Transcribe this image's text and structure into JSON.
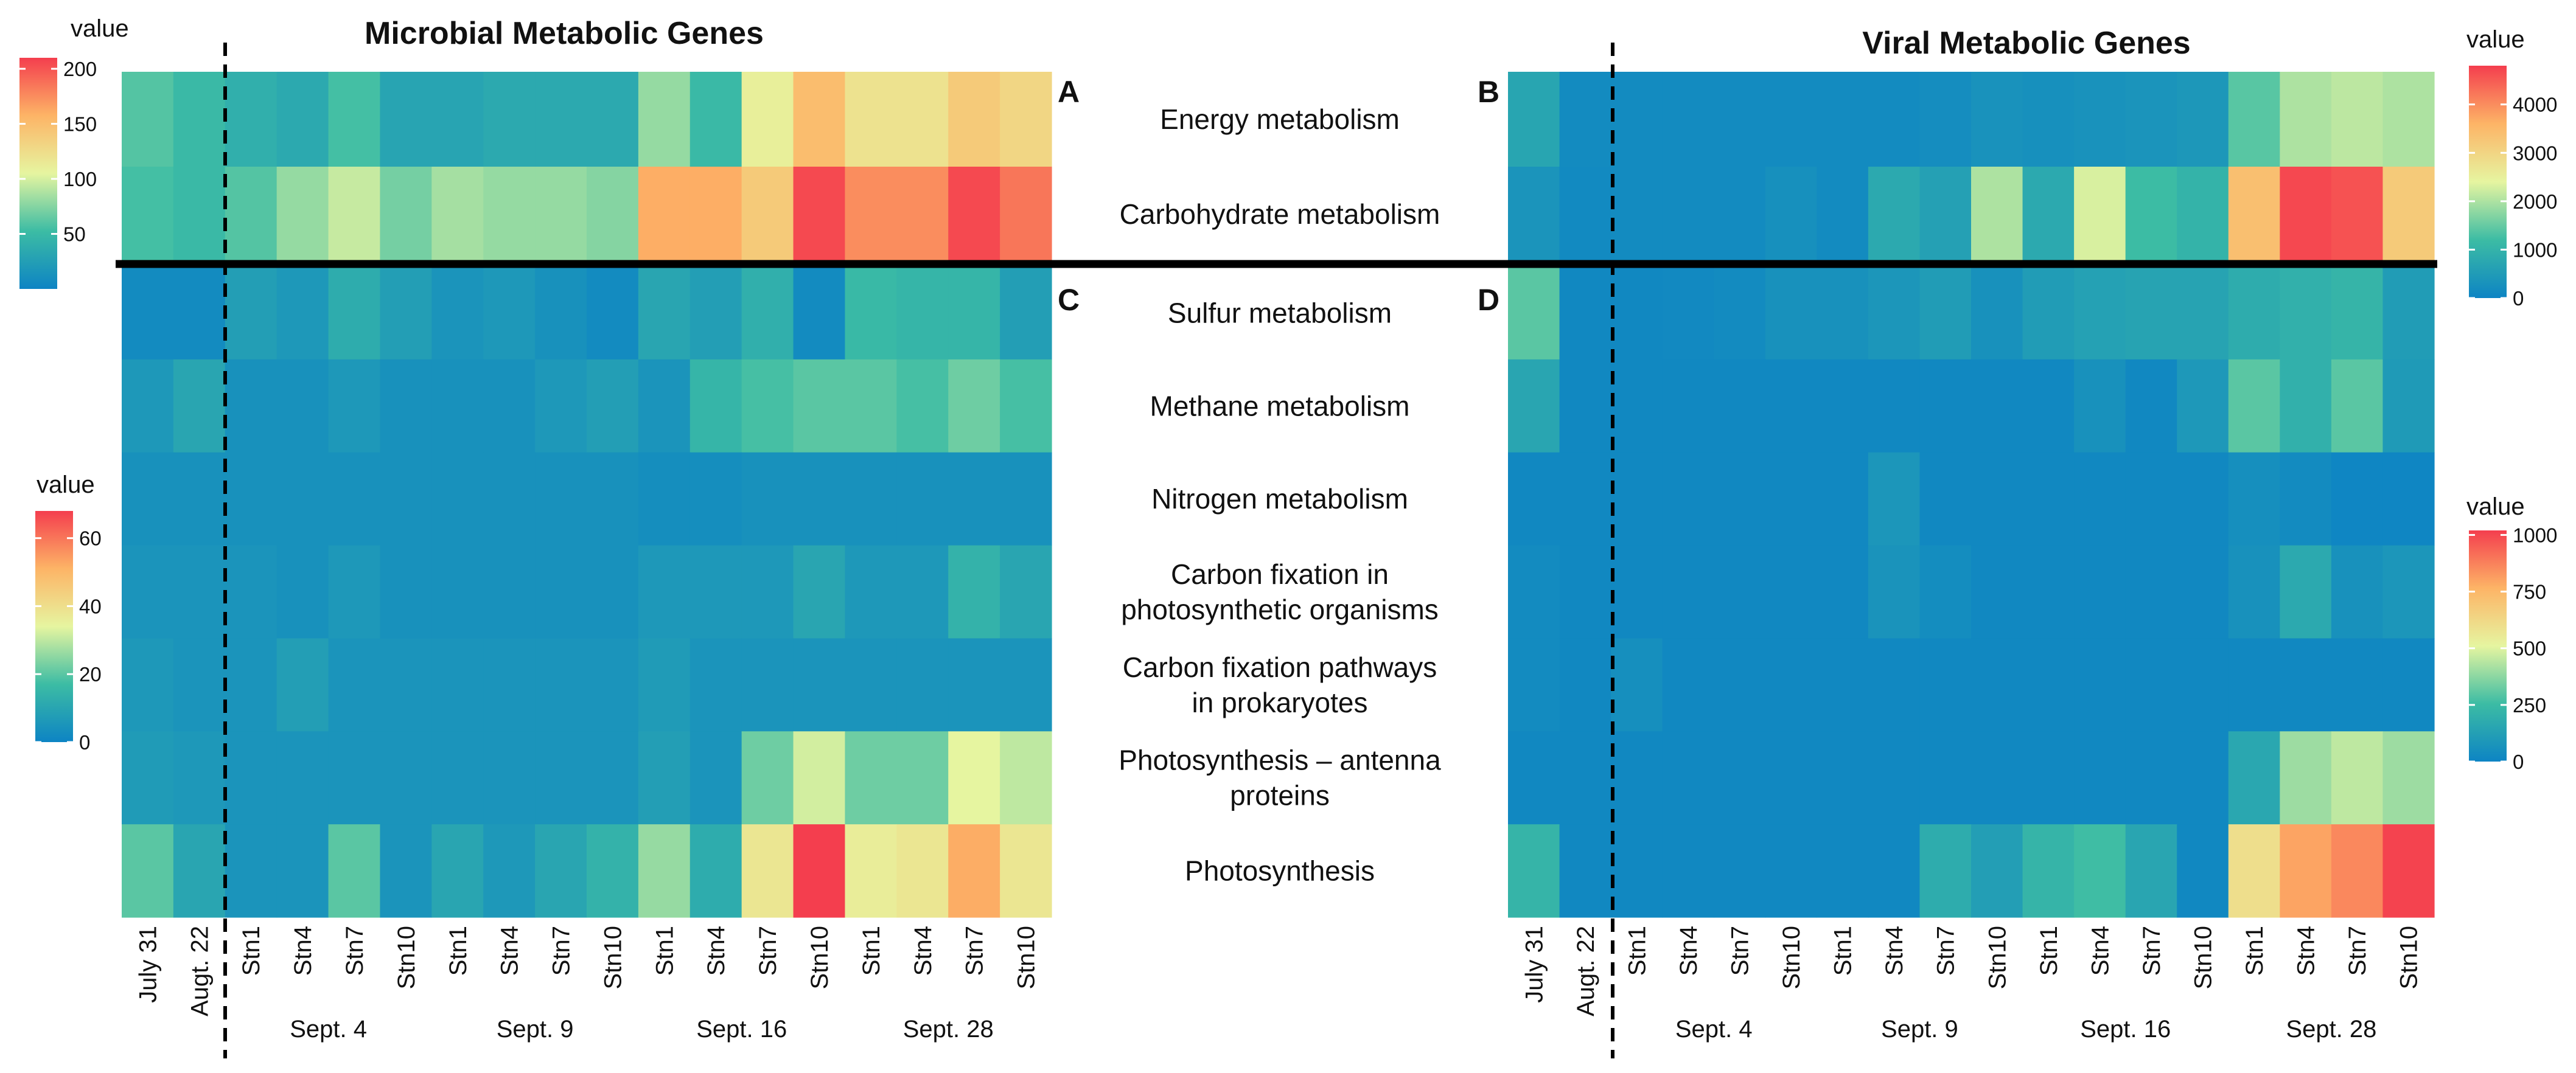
{
  "chart_data": {
    "type": "heatmap",
    "columns": [
      "July 31",
      "Augt. 22",
      "Stn1",
      "Stn4",
      "Stn7",
      "Stn10",
      "Stn1",
      "Stn4",
      "Stn7",
      "Stn10",
      "Stn1",
      "Stn4",
      "Stn7",
      "Stn10",
      "Stn1",
      "Stn4",
      "Stn7",
      "Stn10"
    ],
    "column_groups": [
      "Sept. 4",
      "Sept. 9",
      "Sept. 16",
      "Sept. 28"
    ],
    "row_labels_top": [
      "Energy metabolism",
      "Carbohydrate metabolism"
    ],
    "row_labels_bottom": [
      "Sulfur metabolism",
      "Methane metabolism",
      "Nitrogen metabolism",
      "Carbon fixation in photosynthetic organisms",
      "Carbon fixation pathways in prokaryotes",
      "Photosynthesis – antenna proteins",
      "Photosynthesis"
    ],
    "row_labels_display": [
      [
        "Energy metabolism"
      ],
      [
        "Carbohydrate metabolism"
      ],
      [
        "Sulfur metabolism"
      ],
      [
        "Methane metabolism"
      ],
      [
        "Nitrogen metabolism"
      ],
      [
        "Carbon fixation in",
        "photosynthetic organisms"
      ],
      [
        "Carbon fixation pathways",
        "in prokaryotes"
      ],
      [
        "Photosynthesis – antenna",
        "proteins"
      ],
      [
        "Photosynthesis"
      ]
    ],
    "titles": {
      "microbial": "Microbial Metabolic Genes",
      "viral": "Viral Metabolic Genes"
    },
    "panels": [
      {
        "id": "A",
        "legend_title": "value",
        "scale": [
          0,
          210
        ],
        "ticks": [
          50,
          100,
          150,
          200
        ],
        "values": [
          [
            60,
            50,
            40,
            35,
            55,
            30,
            30,
            35,
            35,
            35,
            80,
            50,
            110,
            150,
            120,
            120,
            140,
            130
          ],
          [
            55,
            50,
            60,
            80,
            95,
            70,
            85,
            80,
            80,
            75,
            160,
            160,
            140,
            205,
            175,
            175,
            205,
            185
          ]
        ]
      },
      {
        "id": "B",
        "legend_title": "value",
        "scale": [
          0,
          4800
        ],
        "ticks": [
          0,
          1000,
          2000,
          3000,
          4000
        ],
        "values": [
          [
            700,
            150,
            150,
            150,
            150,
            150,
            150,
            150,
            200,
            300,
            250,
            300,
            350,
            400,
            1400,
            2000,
            2100,
            2000
          ],
          [
            350,
            120,
            150,
            150,
            150,
            250,
            150,
            800,
            600,
            2000,
            800,
            2300,
            1200,
            1000,
            3400,
            4700,
            4600,
            3200
          ]
        ]
      },
      {
        "id": "C",
        "legend_title": "value",
        "scale": [
          0,
          68
        ],
        "ticks": [
          0,
          20,
          40,
          60
        ],
        "values": [
          [
            2,
            2,
            8,
            6,
            12,
            8,
            5,
            6,
            4,
            2,
            10,
            8,
            13,
            2,
            16,
            15,
            15,
            8
          ],
          [
            6,
            10,
            4,
            4,
            6,
            4,
            4,
            4,
            6,
            8,
            5,
            15,
            18,
            20,
            20,
            18,
            22,
            18
          ],
          [
            4,
            4,
            4,
            4,
            4,
            4,
            4,
            4,
            4,
            4,
            3,
            3,
            4,
            4,
            4,
            4,
            4,
            4
          ],
          [
            5,
            5,
            5,
            4,
            6,
            4,
            4,
            4,
            4,
            4,
            6,
            6,
            6,
            10,
            6,
            6,
            14,
            10
          ],
          [
            6,
            5,
            5,
            8,
            5,
            5,
            5,
            5,
            5,
            5,
            7,
            5,
            5,
            5,
            5,
            5,
            5,
            5
          ],
          [
            7,
            6,
            5,
            5,
            5,
            5,
            5,
            5,
            5,
            5,
            8,
            5,
            22,
            32,
            22,
            22,
            34,
            30
          ],
          [
            20,
            10,
            5,
            5,
            20,
            5,
            10,
            6,
            10,
            14,
            26,
            12,
            38,
            68,
            36,
            38,
            52,
            38
          ]
        ]
      },
      {
        "id": "D",
        "legend_title": "value",
        "scale": [
          0,
          1020
        ],
        "ticks": [
          0,
          250,
          500,
          750,
          1000
        ],
        "values": [
          [
            300,
            20,
            20,
            25,
            30,
            60,
            60,
            80,
            110,
            60,
            110,
            130,
            140,
            140,
            180,
            200,
            220,
            110
          ],
          [
            150,
            20,
            20,
            20,
            20,
            20,
            20,
            20,
            20,
            20,
            20,
            60,
            20,
            90,
            300,
            200,
            300,
            100
          ],
          [
            20,
            20,
            20,
            20,
            20,
            20,
            20,
            80,
            20,
            20,
            20,
            20,
            20,
            20,
            50,
            30,
            10,
            10
          ],
          [
            30,
            20,
            20,
            20,
            20,
            20,
            20,
            70,
            40,
            20,
            20,
            20,
            20,
            20,
            60,
            170,
            60,
            80
          ],
          [
            30,
            20,
            50,
            20,
            20,
            20,
            20,
            20,
            20,
            20,
            20,
            20,
            20,
            20,
            20,
            20,
            20,
            20
          ],
          [
            20,
            20,
            20,
            20,
            20,
            20,
            20,
            20,
            20,
            20,
            20,
            20,
            20,
            20,
            160,
            400,
            450,
            400
          ],
          [
            220,
            20,
            20,
            20,
            20,
            20,
            20,
            20,
            180,
            120,
            220,
            260,
            150,
            20,
            600,
            800,
            860,
            1010
          ]
        ]
      }
    ]
  }
}
